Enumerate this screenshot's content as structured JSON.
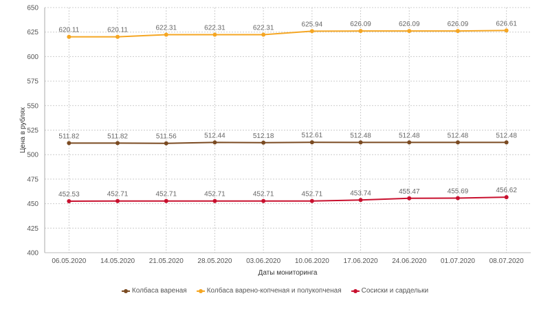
{
  "chart_data": {
    "type": "line",
    "title": "",
    "xlabel": "Даты мониторинга",
    "ylabel": "Цена в рублях",
    "ylim": [
      400,
      650
    ],
    "yticks": [
      400,
      425,
      450,
      475,
      500,
      525,
      550,
      575,
      600,
      625,
      650
    ],
    "grid": true,
    "legend_position": "bottom",
    "categories": [
      "06.05.2020",
      "14.05.2020",
      "21.05.2020",
      "28.05.2020",
      "03.06.2020",
      "10.06.2020",
      "17.06.2020",
      "24.06.2020",
      "01.07.2020",
      "08.07.2020"
    ],
    "series": [
      {
        "name": "Колбаса вареная",
        "color": "#7b4b22",
        "values": [
          511.82,
          511.82,
          511.56,
          512.44,
          512.18,
          512.61,
          512.48,
          512.48,
          512.48,
          512.48
        ]
      },
      {
        "name": "Колбаса варено-копченая и полукопченая",
        "color": "#f5a623",
        "values": [
          620.11,
          620.11,
          622.31,
          622.31,
          622.31,
          625.94,
          626.09,
          626.09,
          626.09,
          626.61
        ]
      },
      {
        "name": "Сосиски и сардельки",
        "color": "#c8102e",
        "values": [
          452.53,
          452.71,
          452.71,
          452.71,
          452.71,
          452.71,
          453.74,
          455.47,
          455.69,
          456.62
        ]
      }
    ]
  }
}
